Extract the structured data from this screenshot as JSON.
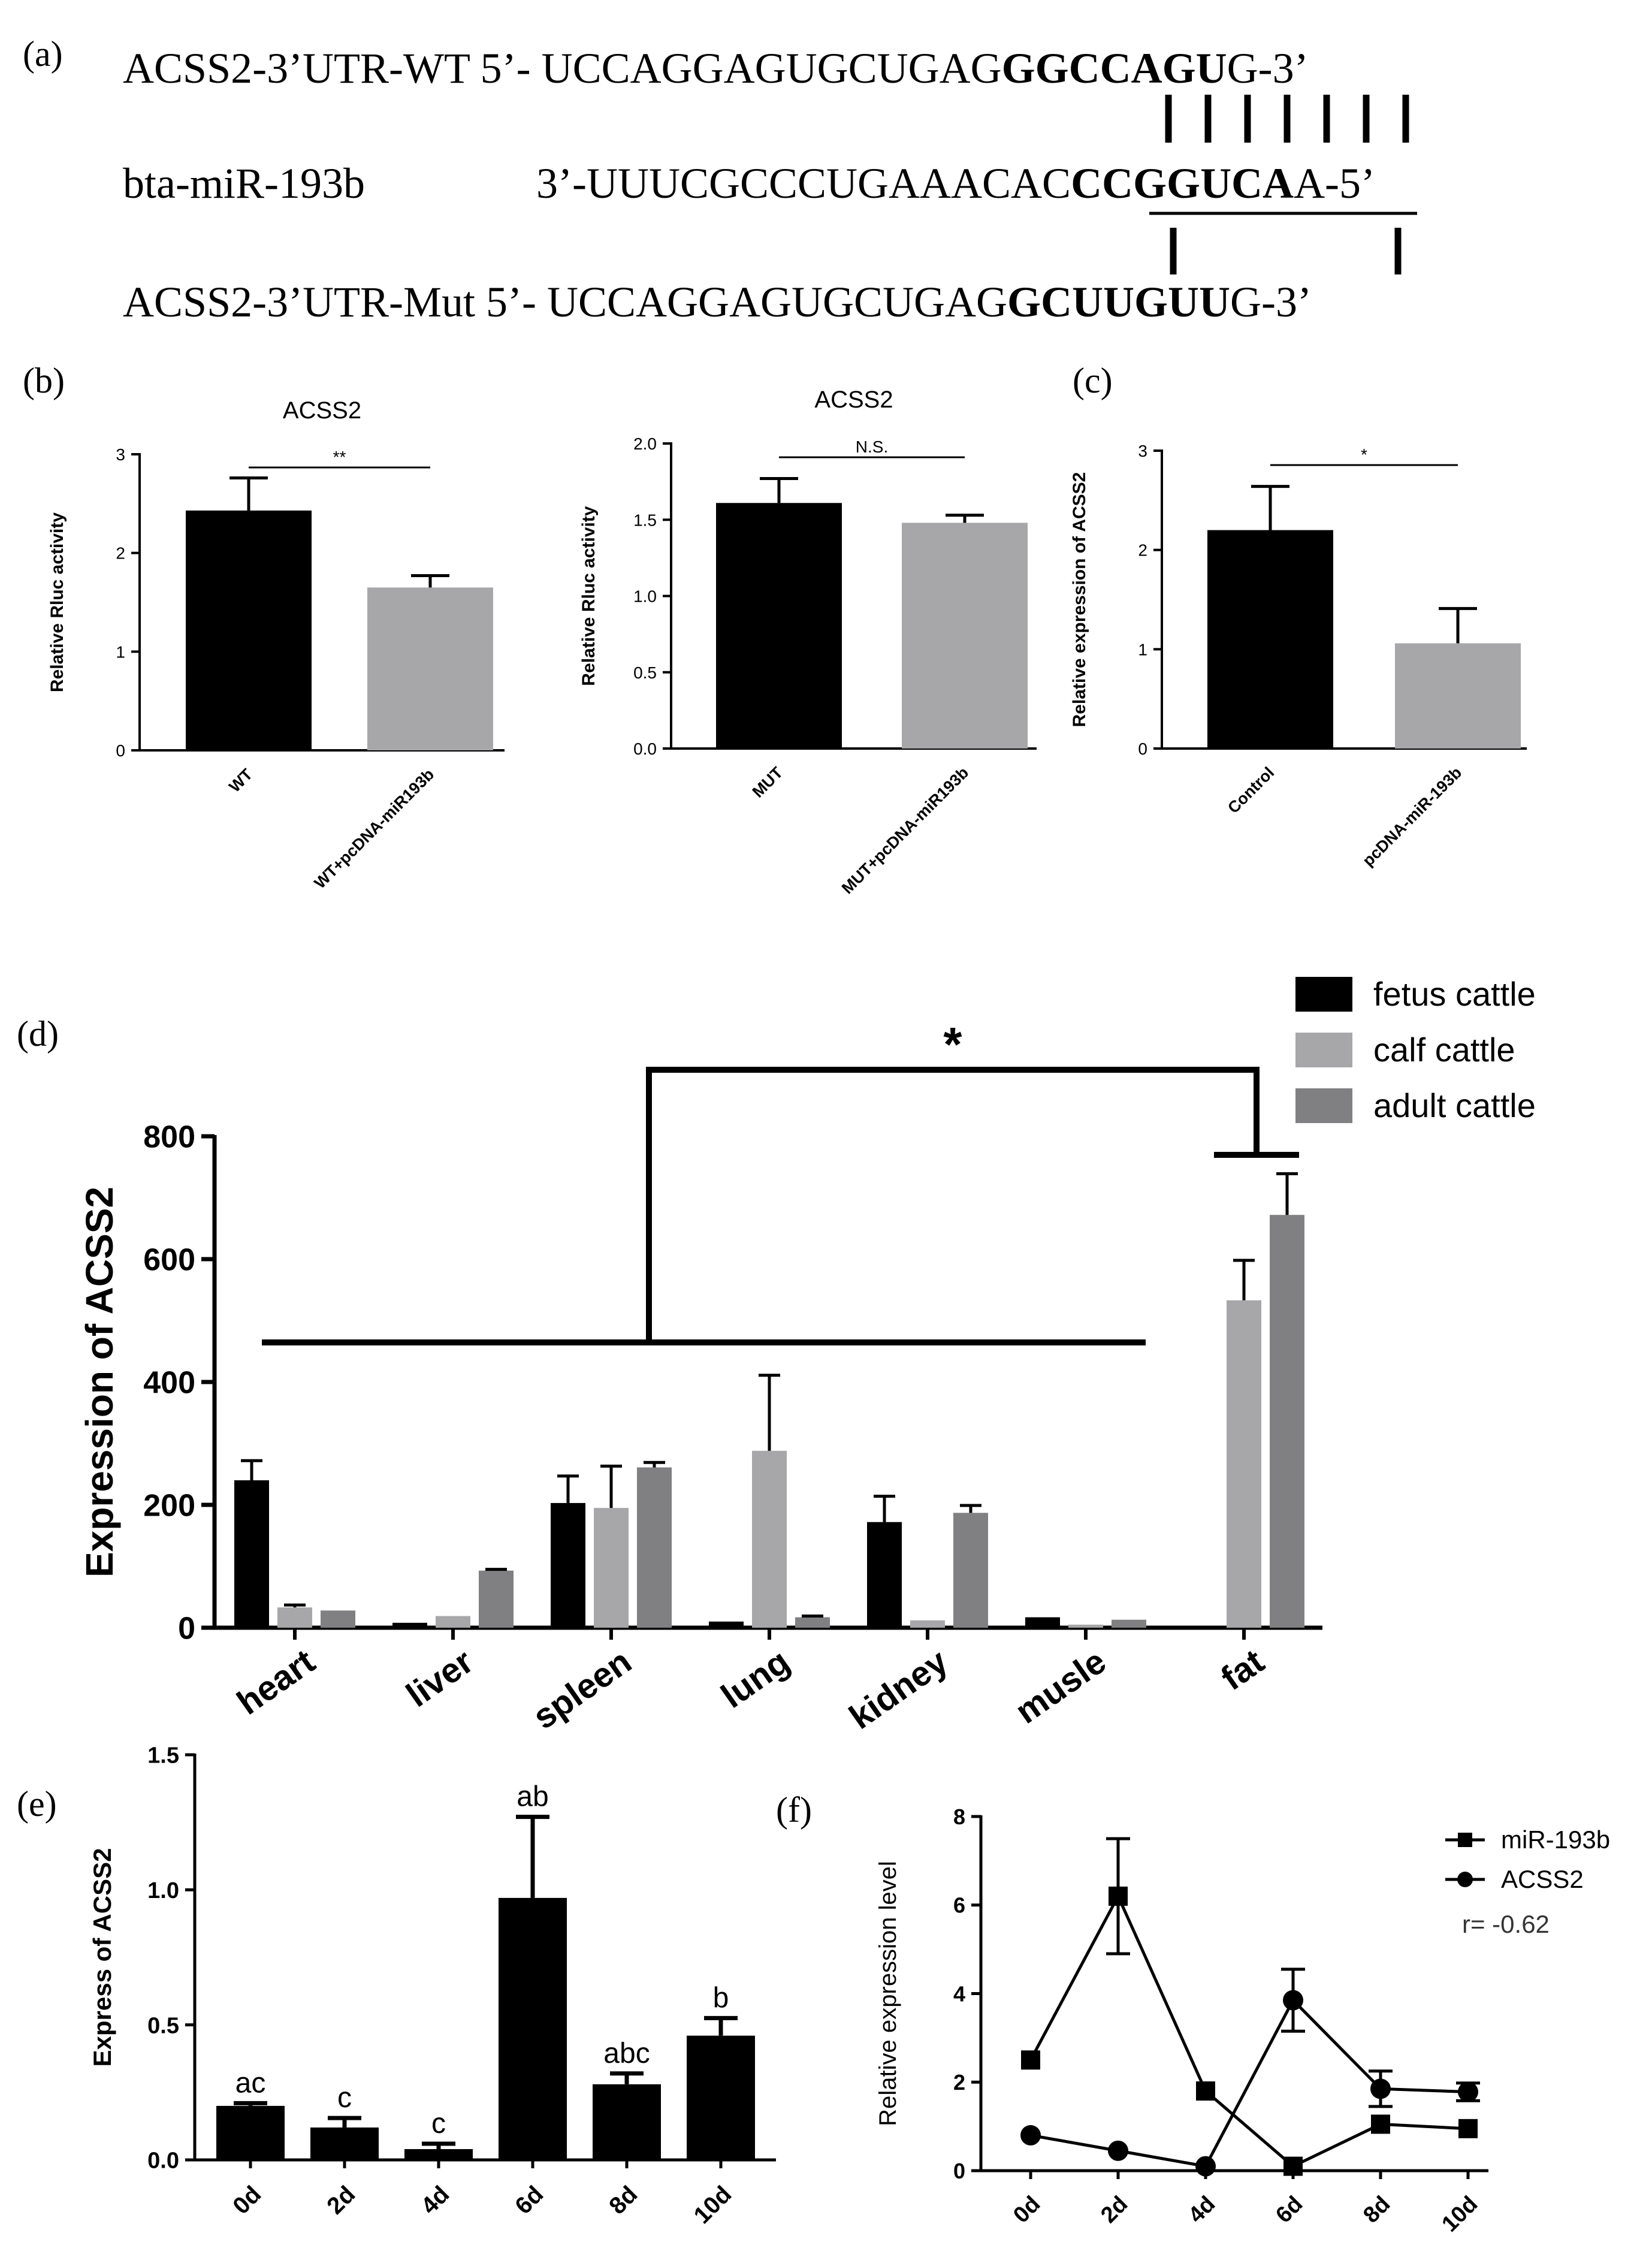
{
  "figure": {
    "panel_a": {
      "label": "(a)",
      "wt": {
        "name": "ACSS2-3’UTR-WT 5’- ",
        "seq_plain": "UCCAGGAGUGCUGAG",
        "seq_bold": "GGCCAGU",
        "seq_end": "G-3’"
      },
      "mirna": {
        "name": "bta-miR-193b",
        "seq_start": "3’-UUUCGCCCUGAAACAC",
        "seq_bold": "CCGGUCA",
        "seq_end": "A-5’"
      },
      "mut": {
        "name": "ACSS2-3’UTR-Mut 5’- ",
        "seq_plain": "UCCAGGAGUGCUGAG",
        "seq_bold": "GCUUGUU",
        "seq_end": "G-3’"
      }
    },
    "panel_labels": {
      "b": "(b)",
      "c": "(c)",
      "d": "(d)",
      "e": "(e)",
      "f": "(f)"
    }
  },
  "chart_data": [
    {
      "id": "b1",
      "type": "bar",
      "title": "ACSS2",
      "ylabel": "Relative Rluc activity",
      "ylim": [
        0,
        3
      ],
      "yticks": [
        "0",
        "1",
        "2",
        "3"
      ],
      "categories": [
        "WT",
        "WT+pcDNA-miR193b"
      ],
      "values": [
        2.43,
        1.65
      ],
      "errors": [
        0.33,
        0.12
      ],
      "colors": [
        "#000000",
        "#a7a7a9"
      ],
      "significance": "**"
    },
    {
      "id": "b2",
      "type": "bar",
      "title": "ACSS2",
      "ylabel": "Relative Rluc activity",
      "ylim": [
        0,
        2.0
      ],
      "yticks": [
        "0.0",
        "0.5",
        "1.0",
        "1.5",
        "2.0"
      ],
      "categories": [
        "MUT",
        "MUT+pcDNA-miR193b"
      ],
      "values": [
        1.61,
        1.48
      ],
      "errors": [
        0.16,
        0.05
      ],
      "colors": [
        "#000000",
        "#a7a7a9"
      ],
      "significance": "N.S."
    },
    {
      "id": "c",
      "type": "bar",
      "title": "",
      "ylabel": "Relative expression of ACSS2",
      "ylim": [
        0,
        3
      ],
      "yticks": [
        "0",
        "1",
        "2",
        "3"
      ],
      "categories": [
        "Control",
        "pcDNA-miR-193b"
      ],
      "values": [
        2.2,
        1.06
      ],
      "errors": [
        0.44,
        0.35
      ],
      "colors": [
        "#000000",
        "#a7a7a9"
      ],
      "significance": "*"
    },
    {
      "id": "d",
      "type": "bar",
      "title": "",
      "ylabel": "Expression of ACSS2",
      "ylim": [
        0,
        800
      ],
      "yticks": [
        "0",
        "200",
        "400",
        "600",
        "800"
      ],
      "categories": [
        "heart",
        "liver",
        "spleen",
        "lung",
        "kidney",
        "musle",
        "fat"
      ],
      "series": [
        {
          "name": "fetus cattle",
          "color": "#000000",
          "values": [
            240,
            8,
            203,
            10,
            172,
            17,
            0
          ],
          "errors": [
            32,
            0,
            44,
            0,
            42,
            0,
            0
          ]
        },
        {
          "name": "calf cattle",
          "color": "#a7a7a9",
          "values": [
            33,
            19,
            195,
            288,
            12,
            5,
            533
          ],
          "errors": [
            4,
            0,
            68,
            123,
            0,
            0,
            65
          ]
        },
        {
          "name": "adult cattle",
          "color": "#808082",
          "values": [
            28,
            93,
            261,
            17,
            187,
            13,
            672
          ],
          "errors": [
            0,
            2,
            8,
            2,
            12,
            0,
            67
          ]
        }
      ],
      "significance": "*"
    },
    {
      "id": "e",
      "type": "bar",
      "title": "",
      "ylabel": "Express of ACSS2",
      "ylim": [
        0,
        1.5
      ],
      "yticks": [
        "0.0",
        "0.5",
        "1.0",
        "1.5"
      ],
      "categories": [
        "0d",
        "2d",
        "4d",
        "6d",
        "8d",
        "10d"
      ],
      "values": [
        0.2,
        0.12,
        0.04,
        0.97,
        0.28,
        0.46
      ],
      "errors": [
        0.01,
        0.035,
        0.02,
        0.3,
        0.04,
        0.065
      ],
      "letters": [
        "ac",
        "c",
        "c",
        "ab",
        "abc",
        "b"
      ],
      "colors": [
        "#000000"
      ]
    },
    {
      "id": "f",
      "type": "line",
      "title": "",
      "ylabel": "Relative expression level",
      "ylim": [
        0,
        8
      ],
      "yticks": [
        "0",
        "2",
        "4",
        "6",
        "8"
      ],
      "x": [
        "0d",
        "2d",
        "4d",
        "6d",
        "8d",
        "10d"
      ],
      "series": [
        {
          "name": "miR-193b",
          "marker": "square",
          "values": [
            2.5,
            6.2,
            1.8,
            0.1,
            1.05,
            0.95
          ],
          "errors": [
            0,
            1.3,
            0,
            0,
            0,
            0
          ]
        },
        {
          "name": "ACSS2",
          "marker": "circle",
          "values": [
            0.8,
            0.45,
            0.1,
            3.85,
            1.85,
            1.78
          ],
          "errors": [
            0,
            0,
            0,
            0.7,
            0.4,
            0.2
          ]
        }
      ],
      "annotation": "r= -0.62"
    }
  ]
}
